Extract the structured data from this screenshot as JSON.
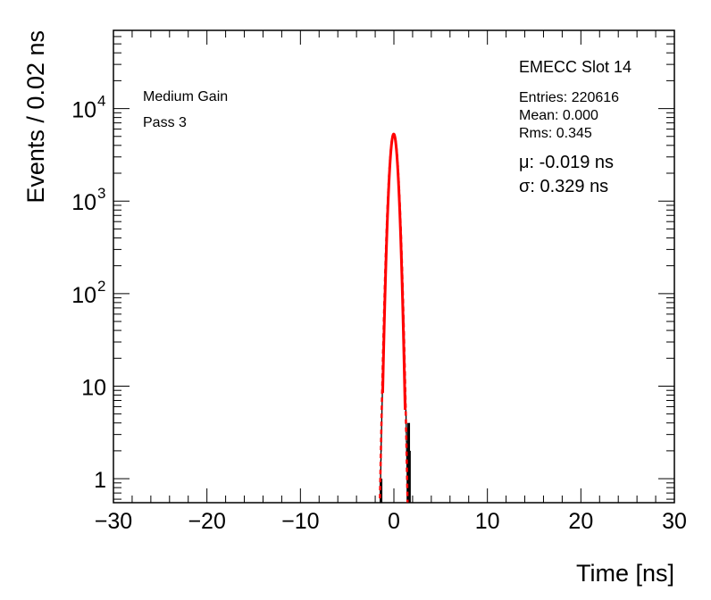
{
  "chart_data": {
    "type": "histogram",
    "title": "EMECC Slot 14",
    "xlabel": "Time [ns]",
    "ylabel": "Events / 0.02 ns",
    "xlim": [
      -30,
      30
    ],
    "ylim": [
      0.55,
      70000
    ],
    "yscale": "log",
    "x_ticks": [
      -30,
      -20,
      -10,
      0,
      10,
      20,
      30
    ],
    "x_tick_labels": [
      "−30",
      "−20",
      "−10",
      "0",
      "10",
      "20",
      "30"
    ],
    "y_ticks": [
      {
        "value": 1,
        "base": "1",
        "exp": ""
      },
      {
        "value": 10,
        "base": "10",
        "exp": ""
      },
      {
        "value": 100,
        "base": "10",
        "exp": "2"
      },
      {
        "value": 1000,
        "base": "10",
        "exp": "3"
      },
      {
        "value": 10000,
        "base": "10",
        "exp": "4"
      }
    ],
    "labels": {
      "gain": "Medium Gain",
      "pass": "Pass 3"
    },
    "stats": {
      "entries": "Entries: 220616",
      "mean": "Mean: 0.000",
      "rms": "Rms: 0.345"
    },
    "fit": {
      "mu_text": "μ: -0.019 ns",
      "sigma_text": "σ: 0.329 ns",
      "mu": -0.019,
      "sigma": 0.329,
      "peak": 5300,
      "color": "#ff0000"
    },
    "histogram": {
      "bin_width": 0.02,
      "mean": 0.0,
      "rms": 0.345,
      "peak": 5300,
      "range": [
        -1.5,
        1.7
      ],
      "outliers": [
        {
          "x": -1.38,
          "count": 1
        },
        {
          "x": 1.58,
          "count": 4
        },
        {
          "x": 1.66,
          "count": 2
        }
      ],
      "color": "#000000"
    }
  }
}
